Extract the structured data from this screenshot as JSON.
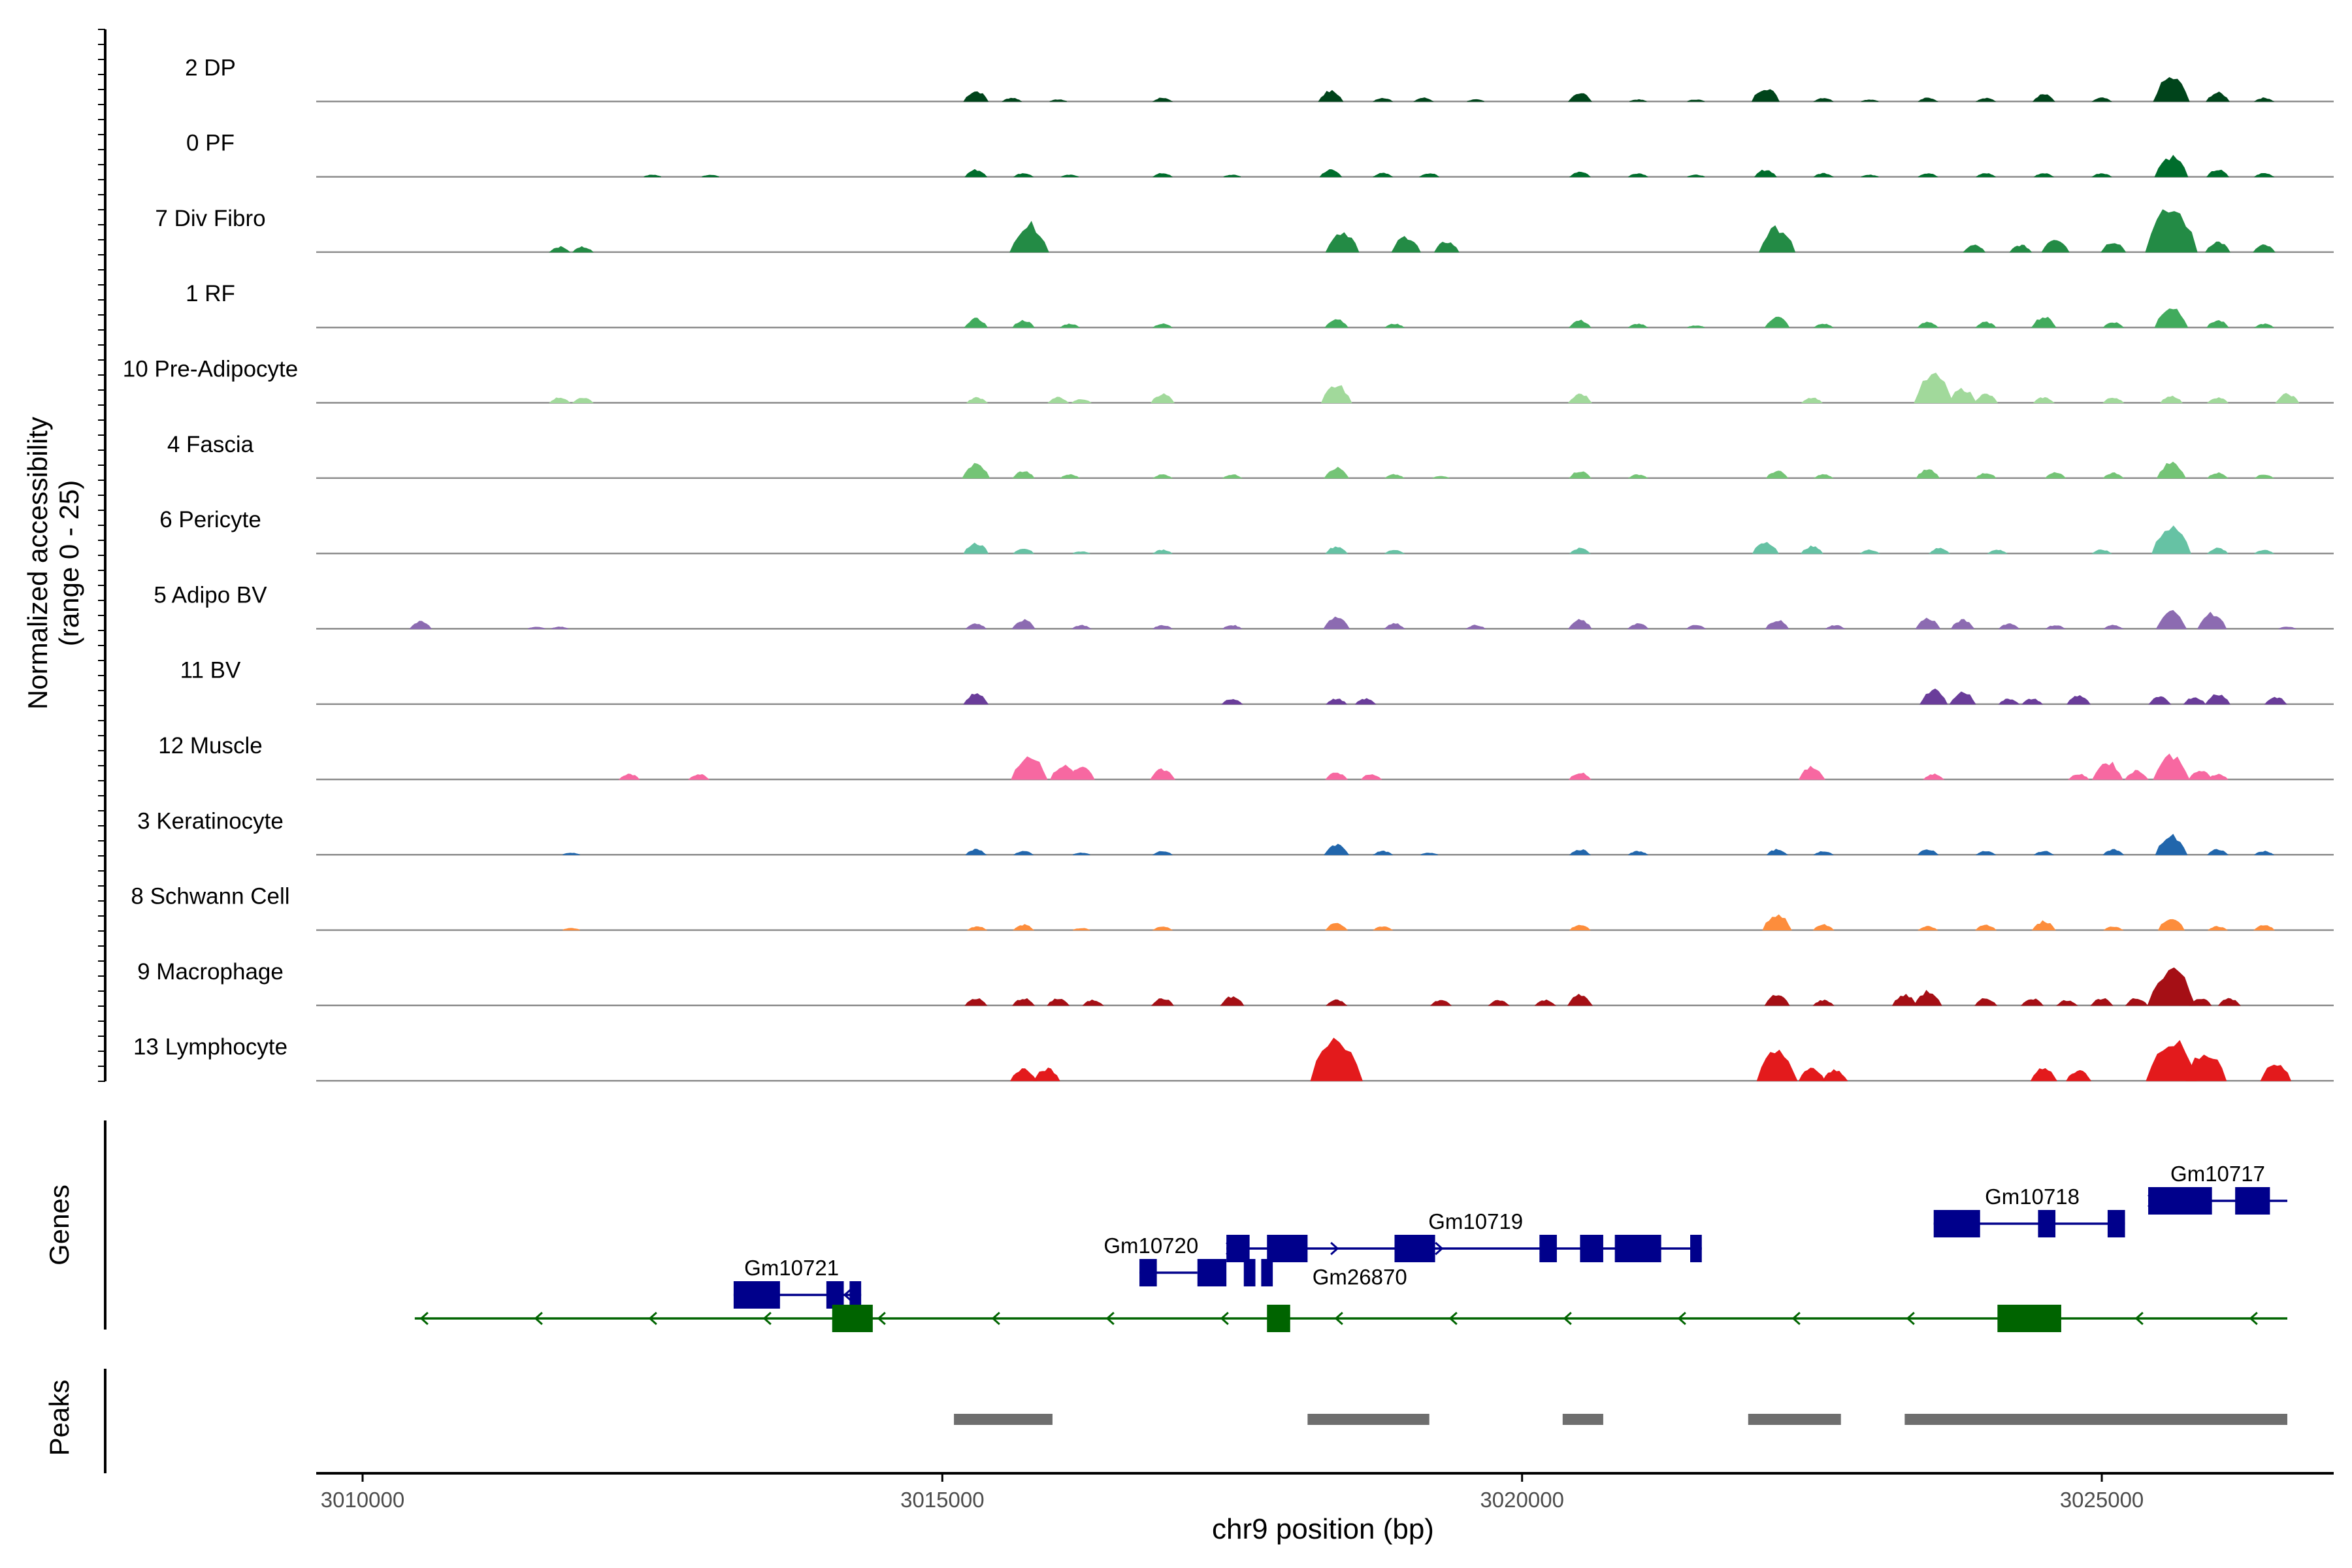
{
  "chart_data": {
    "type": "area",
    "title": "",
    "ylabel": "Normalized accessibility\n(range 0 - 25)",
    "xlabel": "chr9 position (bp)",
    "xlim": [
      3009600,
      3027000
    ],
    "ylim": [
      0,
      25
    ],
    "x_ticks": [
      3010000,
      3015000,
      3020000,
      3025000
    ],
    "x_tick_labels": [
      "3010000",
      "3015000",
      "3020000",
      "3025000"
    ],
    "panel_labels": {
      "genes": "Genes",
      "peaks": "Peaks"
    },
    "tracks": [
      {
        "name": "2 DP",
        "color": "#00441b",
        "regions": [
          [
            3015290,
            6
          ],
          [
            3015600,
            2
          ],
          [
            3016000,
            1
          ],
          [
            3016900,
            2
          ],
          [
            3018350,
            6
          ],
          [
            3018800,
            2
          ],
          [
            3019150,
            2
          ],
          [
            3019600,
            1
          ],
          [
            3020500,
            5
          ],
          [
            3021000,
            1
          ],
          [
            3021500,
            1
          ],
          [
            3022100,
            8
          ],
          [
            3022600,
            2
          ],
          [
            3023000,
            1
          ],
          [
            3023500,
            2
          ],
          [
            3024000,
            2
          ],
          [
            3024500,
            4
          ],
          [
            3025000,
            2
          ],
          [
            3025600,
            14
          ],
          [
            3026000,
            5
          ],
          [
            3026400,
            2
          ]
        ]
      },
      {
        "name": "0 PF",
        "color": "#006d2c",
        "regions": [
          [
            3012500,
            1
          ],
          [
            3013000,
            1
          ],
          [
            3015290,
            4
          ],
          [
            3015700,
            2
          ],
          [
            3016100,
            1
          ],
          [
            3016900,
            2
          ],
          [
            3017500,
            1
          ],
          [
            3018350,
            4
          ],
          [
            3018800,
            2
          ],
          [
            3019200,
            2
          ],
          [
            3020500,
            3
          ],
          [
            3021000,
            2
          ],
          [
            3021500,
            1
          ],
          [
            3022100,
            4
          ],
          [
            3022600,
            2
          ],
          [
            3023000,
            1
          ],
          [
            3023500,
            2
          ],
          [
            3024000,
            2
          ],
          [
            3024500,
            2
          ],
          [
            3025000,
            2
          ],
          [
            3025600,
            12
          ],
          [
            3026000,
            4
          ],
          [
            3026400,
            2
          ]
        ]
      },
      {
        "name": "7 Div Fibro",
        "color": "#238b45",
        "regions": [
          [
            3011700,
            3
          ],
          [
            3011900,
            3
          ],
          [
            3015750,
            16
          ],
          [
            3018450,
            12
          ],
          [
            3019000,
            9
          ],
          [
            3019350,
            6
          ],
          [
            3022200,
            14
          ],
          [
            3023900,
            4
          ],
          [
            3024300,
            4
          ],
          [
            3024600,
            8
          ],
          [
            3025100,
            6
          ],
          [
            3025600,
            25
          ],
          [
            3026000,
            6
          ],
          [
            3026400,
            4
          ]
        ]
      },
      {
        "name": "1 RF",
        "color": "#41ab5d",
        "regions": [
          [
            3015290,
            5
          ],
          [
            3015700,
            4
          ],
          [
            3016100,
            2
          ],
          [
            3016900,
            2
          ],
          [
            3018400,
            5
          ],
          [
            3018900,
            2
          ],
          [
            3020500,
            4
          ],
          [
            3021000,
            2
          ],
          [
            3021500,
            1
          ],
          [
            3022200,
            6
          ],
          [
            3022600,
            2
          ],
          [
            3023500,
            3
          ],
          [
            3024000,
            3
          ],
          [
            3024500,
            6
          ],
          [
            3025100,
            3
          ],
          [
            3025600,
            12
          ],
          [
            3026000,
            4
          ],
          [
            3026400,
            2
          ]
        ]
      },
      {
        "name": "10 Pre-Adipocyte",
        "color": "#a1d99b",
        "regions": [
          [
            3011700,
            3
          ],
          [
            3011900,
            3
          ],
          [
            3015300,
            3
          ],
          [
            3016000,
            3
          ],
          [
            3016200,
            2
          ],
          [
            3016900,
            5
          ],
          [
            3018400,
            10
          ],
          [
            3020500,
            5
          ],
          [
            3022500,
            3
          ],
          [
            3023550,
            16
          ],
          [
            3023800,
            8
          ],
          [
            3024000,
            5
          ],
          [
            3024500,
            3
          ],
          [
            3025100,
            3
          ],
          [
            3025600,
            4
          ],
          [
            3026000,
            3
          ],
          [
            3026600,
            5
          ]
        ]
      },
      {
        "name": "4 Fascia",
        "color": "#74c476",
        "regions": [
          [
            3015290,
            8
          ],
          [
            3015700,
            4
          ],
          [
            3016100,
            2
          ],
          [
            3016900,
            2
          ],
          [
            3017500,
            2
          ],
          [
            3018400,
            6
          ],
          [
            3018900,
            2
          ],
          [
            3019300,
            1
          ],
          [
            3020500,
            4
          ],
          [
            3021000,
            2
          ],
          [
            3022200,
            4
          ],
          [
            3022600,
            2
          ],
          [
            3023500,
            5
          ],
          [
            3024000,
            3
          ],
          [
            3024600,
            3
          ],
          [
            3025100,
            3
          ],
          [
            3025600,
            9
          ],
          [
            3026000,
            3
          ],
          [
            3026400,
            2
          ]
        ]
      },
      {
        "name": "6 Pericyte",
        "color": "#66c2a4",
        "regions": [
          [
            3015290,
            6
          ],
          [
            3015700,
            3
          ],
          [
            3016200,
            1
          ],
          [
            3016900,
            2
          ],
          [
            3018400,
            4
          ],
          [
            3018900,
            2
          ],
          [
            3020500,
            3
          ],
          [
            3022100,
            7
          ],
          [
            3022500,
            4
          ],
          [
            3023000,
            2
          ],
          [
            3023600,
            3
          ],
          [
            3024100,
            2
          ],
          [
            3025000,
            2
          ],
          [
            3025600,
            16
          ],
          [
            3026000,
            3
          ],
          [
            3026400,
            2
          ]
        ]
      },
      {
        "name": "5 Adipo BV",
        "color": "#8c6bb1",
        "regions": [
          [
            3010500,
            4
          ],
          [
            3011500,
            1
          ],
          [
            3011700,
            1
          ],
          [
            3015290,
            3
          ],
          [
            3015700,
            5
          ],
          [
            3016200,
            2
          ],
          [
            3016900,
            2
          ],
          [
            3017500,
            2
          ],
          [
            3018400,
            7
          ],
          [
            3018900,
            3
          ],
          [
            3019600,
            2
          ],
          [
            3020500,
            5
          ],
          [
            3021000,
            3
          ],
          [
            3021500,
            2
          ],
          [
            3022200,
            5
          ],
          [
            3022700,
            2
          ],
          [
            3023500,
            6
          ],
          [
            3023800,
            5
          ],
          [
            3024200,
            3
          ],
          [
            3024600,
            2
          ],
          [
            3025100,
            2
          ],
          [
            3025600,
            10
          ],
          [
            3025950,
            9
          ],
          [
            3026600,
            1
          ]
        ]
      },
      {
        "name": "11 BV",
        "color": "#6a3d9a",
        "regions": [
          [
            3015290,
            6
          ],
          [
            3017500,
            3
          ],
          [
            3018400,
            3
          ],
          [
            3018650,
            3
          ],
          [
            3023550,
            8
          ],
          [
            3023800,
            7
          ],
          [
            3024200,
            3
          ],
          [
            3024400,
            3
          ],
          [
            3024800,
            5
          ],
          [
            3025500,
            4
          ],
          [
            3025800,
            4
          ],
          [
            3026000,
            6
          ],
          [
            3026500,
            4
          ]
        ]
      },
      {
        "name": "12 Muscle",
        "color": "#f768a1",
        "regions": [
          [
            3012300,
            3
          ],
          [
            3012900,
            3
          ],
          [
            3015750,
            14
          ],
          [
            3016050,
            8
          ],
          [
            3016200,
            7
          ],
          [
            3016900,
            6
          ],
          [
            3018400,
            4
          ],
          [
            3018700,
            3
          ],
          [
            3020500,
            4
          ],
          [
            3022500,
            7
          ],
          [
            3023550,
            3
          ],
          [
            3024800,
            3
          ],
          [
            3025050,
            10
          ],
          [
            3025300,
            5
          ],
          [
            3025600,
            14
          ],
          [
            3025850,
            5
          ],
          [
            3026000,
            3
          ]
        ]
      },
      {
        "name": "3 Keratinocyte",
        "color": "#2166ac",
        "regions": [
          [
            3011800,
            1
          ],
          [
            3015290,
            3
          ],
          [
            3015700,
            2
          ],
          [
            3016200,
            1
          ],
          [
            3016900,
            2
          ],
          [
            3018400,
            6
          ],
          [
            3018800,
            2
          ],
          [
            3019200,
            1
          ],
          [
            3020500,
            3
          ],
          [
            3021000,
            2
          ],
          [
            3022200,
            3
          ],
          [
            3022600,
            2
          ],
          [
            3023500,
            3
          ],
          [
            3024000,
            2
          ],
          [
            3024500,
            2
          ],
          [
            3025100,
            3
          ],
          [
            3025600,
            11
          ],
          [
            3026000,
            3
          ],
          [
            3026400,
            2
          ]
        ]
      },
      {
        "name": "8 Schwann Cell",
        "color": "#fd8d3c",
        "regions": [
          [
            3011800,
            1
          ],
          [
            3015300,
            2
          ],
          [
            3015700,
            3
          ],
          [
            3016200,
            1
          ],
          [
            3016900,
            2
          ],
          [
            3018400,
            4
          ],
          [
            3018800,
            2
          ],
          [
            3020500,
            3
          ],
          [
            3022200,
            9
          ],
          [
            3022600,
            3
          ],
          [
            3023500,
            2
          ],
          [
            3024000,
            3
          ],
          [
            3024500,
            5
          ],
          [
            3025100,
            2
          ],
          [
            3025600,
            7
          ],
          [
            3026000,
            2
          ],
          [
            3026400,
            3
          ]
        ]
      },
      {
        "name": "9 Macrophage",
        "color": "#a50f15",
        "regions": [
          [
            3015290,
            4
          ],
          [
            3015700,
            4
          ],
          [
            3016000,
            4
          ],
          [
            3016300,
            3
          ],
          [
            3016900,
            4
          ],
          [
            3017500,
            5
          ],
          [
            3018400,
            3
          ],
          [
            3019300,
            3
          ],
          [
            3019800,
            3
          ],
          [
            3020200,
            3
          ],
          [
            3020500,
            6
          ],
          [
            3022200,
            6
          ],
          [
            3022600,
            3
          ],
          [
            3023300,
            6
          ],
          [
            3023500,
            8
          ],
          [
            3024000,
            4
          ],
          [
            3024400,
            4
          ],
          [
            3024700,
            3
          ],
          [
            3025000,
            4
          ],
          [
            3025300,
            4
          ],
          [
            3025600,
            22
          ],
          [
            3025850,
            4
          ],
          [
            3026100,
            4
          ]
        ]
      },
      {
        "name": "13 Lymphocyte",
        "color": "#e31a1c",
        "regions": [
          [
            3015700,
            7
          ],
          [
            3015900,
            7
          ],
          [
            3018400,
            25
          ],
          [
            3022200,
            17
          ],
          [
            3022500,
            7
          ],
          [
            3022700,
            6
          ],
          [
            3024500,
            7
          ],
          [
            3024800,
            6
          ],
          [
            3025600,
            24
          ],
          [
            3025900,
            17
          ],
          [
            3026500,
            10
          ]
        ]
      }
    ],
    "genes": [
      {
        "name": "Gm10721",
        "strand": "-",
        "start": 3013200,
        "end": 3014300,
        "color": "#00008b",
        "exons": [
          [
            3013200,
            3013600
          ],
          [
            3014000,
            3014150
          ],
          [
            3014200,
            3014300
          ]
        ]
      },
      {
        "name": "Gm10720",
        "strand": "-",
        "start": 3016700,
        "end": 3017200,
        "color": "#00008b",
        "exons": [
          [
            3016700,
            3016850
          ],
          [
            3017200,
            3017450
          ],
          [
            3017600,
            3017700
          ],
          [
            3017750,
            3017850
          ]
        ]
      },
      {
        "name": "Gm10719",
        "strand": "+",
        "start": 3017450,
        "end": 3021550,
        "color": "#00008b",
        "exons": [
          [
            3017450,
            3017650
          ],
          [
            3017800,
            3018150
          ],
          [
            3018900,
            3019250
          ],
          [
            3020150,
            3020300
          ],
          [
            3020500,
            3020700
          ],
          [
            3020800,
            3021200
          ],
          [
            3021450,
            3021550
          ]
        ]
      },
      {
        "name": "Gm26870",
        "strand": "-",
        "start": 3010450,
        "end": 3026600,
        "color": "#006400",
        "exons": [
          [
            3014050,
            3014400
          ],
          [
            3017800,
            3018000
          ],
          [
            3024100,
            3024650
          ]
        ]
      },
      {
        "name": "Gm10718",
        "strand": "-",
        "start": 3023550,
        "end": 3025200,
        "color": "#00008b",
        "exons": [
          [
            3023550,
            3023950
          ],
          [
            3024450,
            3024600
          ],
          [
            3025050,
            3025200
          ]
        ]
      },
      {
        "name": "Gm10717",
        "strand": "+",
        "start": 3025400,
        "end": 3026600,
        "color": "#00008b",
        "exons": [
          [
            3025400,
            3025950
          ],
          [
            3026150,
            3026450
          ]
        ]
      }
    ],
    "peaks": [
      [
        3015100,
        3015950
      ],
      [
        3018150,
        3019200
      ],
      [
        3020350,
        3020700
      ],
      [
        3021950,
        3022750
      ],
      [
        3023300,
        3026600
      ]
    ]
  }
}
